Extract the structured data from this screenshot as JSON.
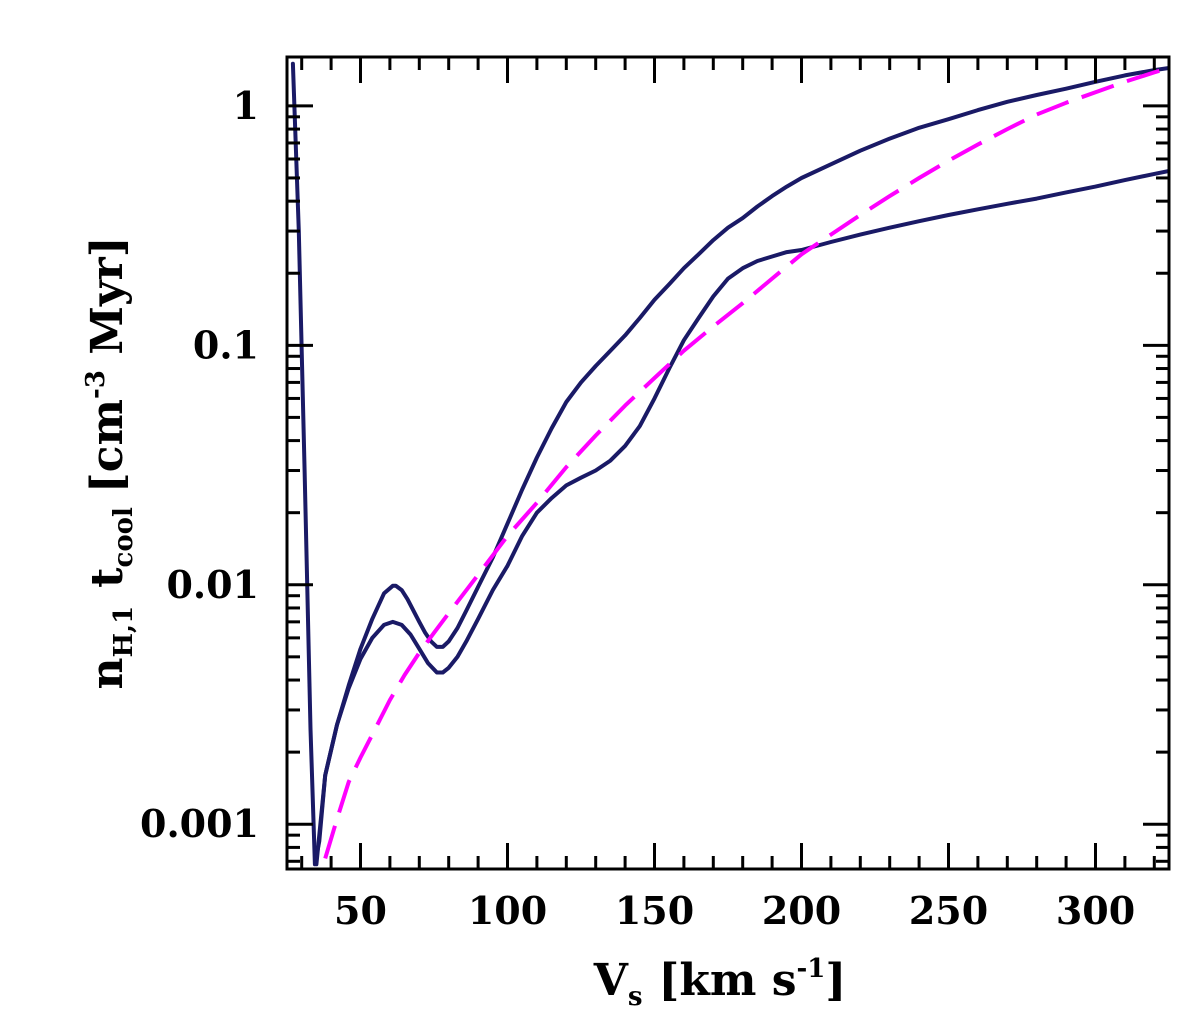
{
  "chart_data": {
    "type": "line",
    "xlabel": {
      "main": "V",
      "sub": "s",
      "unit_pre": "[km s",
      "unit_sup": "-1",
      "unit_post": "]"
    },
    "ylabel": {
      "n": "n",
      "n_sub": "H,1",
      "t": "t",
      "t_sub": "cool",
      "unit_pre": "[cm",
      "unit_sup": "-3",
      "unit_post": " Myr]"
    },
    "xlim": [
      25,
      325
    ],
    "ylim": [
      0.00065,
      1.6
    ],
    "yscale": "log",
    "xticks": [
      50,
      100,
      150,
      200,
      250,
      300
    ],
    "xtick_labels": [
      "50",
      "100",
      "150",
      "200",
      "250",
      "300"
    ],
    "yticks": [
      0.001,
      0.01,
      0.1,
      1
    ],
    "ytick_labels": [
      "0.001",
      "0.01",
      "0.1",
      "1"
    ],
    "grid": false,
    "series": [
      {
        "style": "solid",
        "color": "#1a1a66",
        "x": [
          27,
          29,
          31,
          33,
          34.5,
          36,
          38,
          42,
          46,
          50,
          54,
          58,
          61,
          62,
          64,
          66,
          68,
          70,
          72,
          74,
          76,
          78,
          80,
          83,
          86,
          90,
          95,
          100,
          105,
          110,
          115,
          120,
          125,
          130,
          135,
          140,
          145,
          150,
          155,
          160,
          165,
          170,
          175,
          180,
          185,
          190,
          195,
          200,
          210,
          220,
          230,
          240,
          250,
          260,
          270,
          280,
          290,
          300,
          310,
          320,
          325
        ],
        "y": [
          1.5,
          0.3,
          0.03,
          0.0025,
          0.00068,
          0.00085,
          0.0016,
          0.0026,
          0.0038,
          0.0054,
          0.0072,
          0.0092,
          0.0099,
          0.0099,
          0.0095,
          0.0087,
          0.0078,
          0.007,
          0.0063,
          0.0058,
          0.0055,
          0.0055,
          0.0058,
          0.0066,
          0.0078,
          0.0098,
          0.013,
          0.018,
          0.025,
          0.034,
          0.045,
          0.058,
          0.07,
          0.082,
          0.095,
          0.11,
          0.13,
          0.155,
          0.18,
          0.21,
          0.24,
          0.275,
          0.31,
          0.34,
          0.38,
          0.42,
          0.46,
          0.5,
          0.57,
          0.65,
          0.73,
          0.81,
          0.88,
          0.96,
          1.04,
          1.11,
          1.18,
          1.26,
          1.34,
          1.41,
          1.44
        ]
      },
      {
        "style": "solid",
        "color": "#1a1a66",
        "x": [
          35,
          38,
          42,
          46,
          50,
          54,
          58,
          61,
          64,
          67,
          70,
          73,
          76,
          78,
          80,
          83,
          86,
          90,
          95,
          100,
          105,
          110,
          115,
          120,
          125,
          130,
          135,
          140,
          145,
          150,
          155,
          160,
          165,
          170,
          175,
          180,
          185,
          190,
          195,
          200,
          210,
          220,
          230,
          240,
          250,
          260,
          270,
          280,
          290,
          300,
          310,
          320,
          325
        ],
        "y": [
          0.00068,
          0.0016,
          0.0026,
          0.0037,
          0.0049,
          0.006,
          0.0068,
          0.007,
          0.0068,
          0.0062,
          0.0054,
          0.0047,
          0.0043,
          0.0043,
          0.0045,
          0.005,
          0.0058,
          0.0072,
          0.0095,
          0.012,
          0.016,
          0.02,
          0.023,
          0.026,
          0.028,
          0.03,
          0.033,
          0.038,
          0.046,
          0.06,
          0.08,
          0.105,
          0.13,
          0.16,
          0.19,
          0.21,
          0.225,
          0.235,
          0.245,
          0.25,
          0.27,
          0.29,
          0.31,
          0.33,
          0.35,
          0.37,
          0.39,
          0.41,
          0.435,
          0.46,
          0.49,
          0.52,
          0.535
        ]
      },
      {
        "style": "dashed",
        "color": "#ff00ff",
        "x": [
          38,
          42,
          46,
          50,
          55,
          60,
          65,
          70,
          75,
          80,
          90,
          100,
          110,
          120,
          130,
          140,
          150,
          160,
          170,
          180,
          190,
          200,
          210,
          220,
          230,
          240,
          250,
          260,
          270,
          280,
          290,
          300,
          310,
          320,
          325
        ],
        "y": [
          0.00072,
          0.00105,
          0.0015,
          0.0019,
          0.0025,
          0.0033,
          0.0042,
          0.0052,
          0.0063,
          0.0076,
          0.011,
          0.016,
          0.022,
          0.031,
          0.042,
          0.056,
          0.073,
          0.095,
          0.12,
          0.15,
          0.19,
          0.24,
          0.29,
          0.35,
          0.42,
          0.5,
          0.59,
          0.69,
          0.8,
          0.92,
          1.03,
          1.14,
          1.26,
          1.38,
          1.44
        ]
      }
    ]
  }
}
